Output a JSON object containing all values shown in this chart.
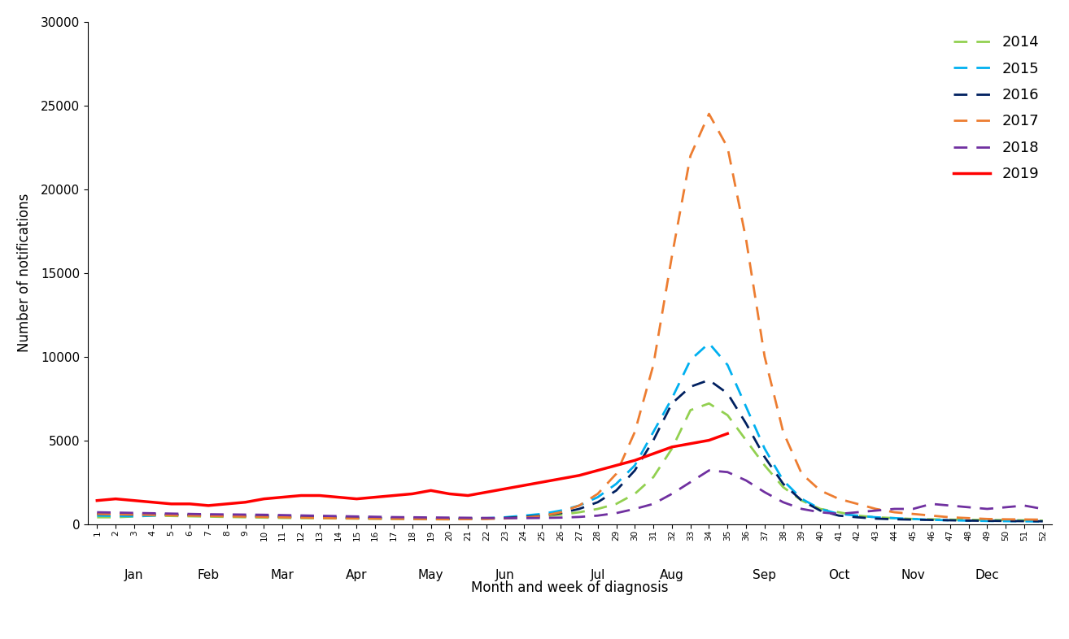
{
  "weeks": [
    1,
    2,
    3,
    4,
    5,
    6,
    7,
    8,
    9,
    10,
    11,
    12,
    13,
    14,
    15,
    16,
    17,
    18,
    19,
    20,
    21,
    22,
    23,
    24,
    25,
    26,
    27,
    28,
    29,
    30,
    31,
    32,
    33,
    34,
    35,
    36,
    37,
    38,
    39,
    40,
    41,
    42,
    43,
    44,
    45,
    46,
    47,
    48,
    49,
    50,
    51,
    52
  ],
  "series": {
    "2014": {
      "color": "#92d050",
      "linestyle": "dashed",
      "linewidth": 2.0,
      "values": [
        400,
        400,
        450,
        500,
        480,
        460,
        440,
        420,
        400,
        380,
        360,
        350,
        340,
        330,
        320,
        310,
        300,
        290,
        280,
        280,
        300,
        320,
        350,
        400,
        450,
        550,
        700,
        900,
        1200,
        1800,
        2800,
        4500,
        6800,
        7200,
        6500,
        5000,
        3500,
        2200,
        1400,
        900,
        700,
        500,
        400,
        350,
        300,
        280,
        260,
        250,
        240,
        230,
        220,
        200
      ]
    },
    "2015": {
      "color": "#00b0f0",
      "linestyle": "dashed",
      "linewidth": 2.0,
      "values": [
        500,
        480,
        460,
        500,
        550,
        530,
        510,
        490,
        470,
        450,
        430,
        410,
        400,
        390,
        380,
        360,
        340,
        320,
        310,
        310,
        330,
        350,
        400,
        500,
        600,
        800,
        1100,
        1600,
        2400,
        3500,
        5500,
        7500,
        9800,
        10800,
        9500,
        7000,
        4500,
        2600,
        1500,
        900,
        600,
        500,
        400,
        350,
        300,
        250,
        220,
        200,
        180,
        170,
        160,
        150
      ]
    },
    "2016": {
      "color": "#002060",
      "linestyle": "dashed",
      "linewidth": 2.0,
      "values": [
        600,
        580,
        560,
        580,
        560,
        540,
        520,
        500,
        480,
        460,
        440,
        420,
        400,
        380,
        360,
        350,
        340,
        330,
        320,
        310,
        320,
        330,
        360,
        420,
        500,
        650,
        900,
        1300,
        2000,
        3200,
        5000,
        7200,
        8200,
        8600,
        7800,
        6000,
        4000,
        2400,
        1400,
        800,
        500,
        400,
        320,
        280,
        260,
        240,
        220,
        200,
        190,
        180,
        170,
        160
      ]
    },
    "2017": {
      "color": "#ed7d31",
      "linestyle": "dashed",
      "linewidth": 2.0,
      "values": [
        600,
        580,
        560,
        540,
        520,
        500,
        480,
        460,
        440,
        420,
        400,
        380,
        360,
        340,
        330,
        320,
        310,
        300,
        290,
        280,
        290,
        300,
        330,
        380,
        480,
        700,
        1100,
        1800,
        3000,
        5500,
        9500,
        16000,
        22000,
        24500,
        22500,
        17000,
        10000,
        5500,
        3000,
        2000,
        1500,
        1200,
        900,
        700,
        600,
        500,
        400,
        350,
        300,
        280,
        270,
        260
      ]
    },
    "2018": {
      "color": "#7030a0",
      "linestyle": "dashed",
      "linewidth": 2.0,
      "values": [
        700,
        680,
        660,
        640,
        620,
        600,
        580,
        570,
        560,
        550,
        530,
        510,
        490,
        470,
        450,
        430,
        410,
        400,
        390,
        380,
        370,
        360,
        350,
        350,
        360,
        380,
        420,
        500,
        650,
        900,
        1200,
        1800,
        2500,
        3200,
        3100,
        2600,
        1900,
        1300,
        900,
        700,
        600,
        700,
        800,
        900,
        900,
        1200,
        1100,
        1000,
        900,
        1000,
        1100,
        900
      ]
    },
    "2019": {
      "color": "#ff0000",
      "linestyle": "solid",
      "linewidth": 2.5,
      "values": [
        1400,
        1500,
        1400,
        1300,
        1200,
        1200,
        1100,
        1200,
        1300,
        1500,
        1600,
        1700,
        1700,
        1600,
        1500,
        1600,
        1700,
        1800,
        2000,
        1800,
        1700,
        1900,
        2100,
        2300,
        2500,
        2700,
        2900,
        3200,
        3500,
        3800,
        4200,
        4600,
        4800,
        5000,
        5400,
        null,
        null,
        null,
        null,
        null,
        null,
        null,
        null,
        null,
        null,
        null,
        null,
        null,
        null,
        null,
        null,
        null
      ]
    }
  },
  "ylim": [
    0,
    30000
  ],
  "yticks": [
    0,
    5000,
    10000,
    15000,
    20000,
    25000,
    30000
  ],
  "ylabel": "Number of notifications",
  "xlabel": "Month and week of diagnosis",
  "background_color": "#ffffff",
  "legend_order": [
    "2014",
    "2015",
    "2016",
    "2017",
    "2018",
    "2019"
  ],
  "month_centers": {
    "Jan": 3,
    "Feb": 7,
    "Mar": 11,
    "Apr": 15,
    "May": 19,
    "Jun": 23,
    "Jul": 28,
    "Aug": 32,
    "Sep": 37,
    "Oct": 41,
    "Nov": 45,
    "Dec": 49
  },
  "dashes": [
    6,
    4
  ]
}
